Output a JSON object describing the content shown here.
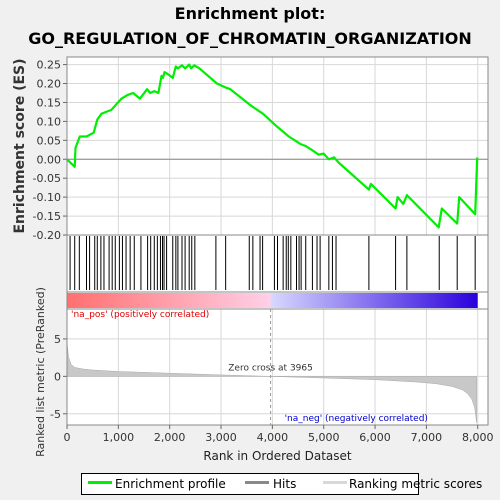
{
  "title_line1": "Enrichment plot:",
  "title_line2": "GO_REGULATION_OF_CHROMATIN_ORGANIZATION",
  "chart_data": {
    "type": "line",
    "title": "Enrichment plot: GO_REGULATION_OF_CHROMATIN_ORGANIZATION",
    "top_panel": {
      "ylabel": "Enrichment score (ES)",
      "ylim": [
        -0.2,
        0.27
      ],
      "yticks": [
        "0.25",
        "0.20",
        "0.15",
        "0.10",
        "0.05",
        "0.00",
        "-0.05",
        "-0.10",
        "-0.15",
        "-0.20"
      ],
      "ytick_values": [
        0.25,
        0.2,
        0.15,
        0.1,
        0.05,
        0.0,
        -0.05,
        -0.1,
        -0.15,
        -0.2
      ],
      "series": [
        {
          "name": "Enrichment profile",
          "color": "#00ee00",
          "x": [
            0,
            150,
            165,
            250,
            380,
            520,
            590,
            670,
            760,
            860,
            960,
            1060,
            1180,
            1290,
            1420,
            1560,
            1620,
            1700,
            1780,
            1840,
            1870,
            1900,
            1960,
            2060,
            2120,
            2160,
            2240,
            2300,
            2380,
            2420,
            2480,
            2580,
            2920,
            3080,
            3180,
            3600,
            3820,
            4060,
            4320,
            4550,
            4650,
            4820,
            4900,
            5000,
            5100,
            5200,
            5300,
            5880,
            5920,
            6400,
            6440,
            6550,
            6620,
            7240,
            7300,
            7600,
            7640,
            7950,
            7990
          ],
          "y": [
            0.0,
            -0.02,
            0.03,
            0.06,
            0.06,
            0.07,
            0.105,
            0.12,
            0.125,
            0.13,
            0.145,
            0.16,
            0.17,
            0.175,
            0.16,
            0.185,
            0.175,
            0.18,
            0.175,
            0.22,
            0.215,
            0.23,
            0.225,
            0.215,
            0.245,
            0.24,
            0.248,
            0.24,
            0.25,
            0.24,
            0.248,
            0.24,
            0.2,
            0.19,
            0.185,
            0.14,
            0.12,
            0.09,
            0.06,
            0.04,
            0.035,
            0.02,
            0.012,
            0.015,
            0.0,
            0.005,
            -0.01,
            -0.08,
            -0.065,
            -0.13,
            -0.1,
            -0.118,
            -0.095,
            -0.18,
            -0.13,
            -0.17,
            -0.1,
            -0.145,
            0.005
          ]
        }
      ]
    },
    "hits_panel": {
      "series_name": "Hits",
      "positions": [
        60,
        150,
        240,
        380,
        440,
        540,
        590,
        660,
        720,
        820,
        880,
        940,
        1020,
        1080,
        1150,
        1230,
        1310,
        1440,
        1570,
        1630,
        1700,
        1760,
        1820,
        1860,
        1890,
        1940,
        2060,
        2120,
        2160,
        2240,
        2300,
        2380,
        2430,
        2490,
        2900,
        3090,
        3550,
        3620,
        3760,
        3810,
        4040,
        4100,
        4210,
        4270,
        4310,
        4360,
        4470,
        4520,
        4560,
        4650,
        4780,
        4870,
        4930,
        5100,
        5170,
        5240,
        5880,
        6400,
        6620,
        7250,
        7600,
        7950
      ]
    },
    "rank_bar_panel": {
      "segments": [
        {
          "from": 0,
          "to": 3965,
          "colors": [
            "#ff6f6f",
            "#ffd0e8"
          ]
        },
        {
          "from": 3965,
          "to": 8000,
          "colors": [
            "#d8d8ff",
            "#2a00dd"
          ]
        }
      ]
    },
    "metric_panel": {
      "ylabel": "Ranked list metric (PreRanked)",
      "xlabel": "Rank in Ordered Dataset",
      "ylim": [
        -6.5,
        9
      ],
      "yticks": [
        "5",
        "0",
        "-5"
      ],
      "ytick_values": [
        5,
        0,
        -5
      ],
      "xticks": [
        "0",
        "1,000",
        "2,000",
        "3,000",
        "4,000",
        "5,000",
        "6,000",
        "7,000",
        "8,000"
      ],
      "xtick_values": [
        0,
        1000,
        2000,
        3000,
        4000,
        5000,
        6000,
        7000,
        8000
      ],
      "xlim": [
        0,
        8200
      ],
      "series_name": "Ranking metric scores",
      "profile_x": [
        0,
        30,
        80,
        150,
        300,
        500,
        1000,
        2000,
        3000,
        3965,
        5000,
        6000,
        6800,
        7200,
        7500,
        7700,
        7800,
        7880,
        7940,
        7980
      ],
      "profile_y": [
        4.6,
        2.6,
        1.6,
        1.2,
        1.0,
        0.85,
        0.65,
        0.42,
        0.2,
        0.0,
        -0.22,
        -0.45,
        -0.75,
        -1.0,
        -1.35,
        -1.8,
        -2.3,
        -3.0,
        -4.2,
        -6.2
      ],
      "annotations": {
        "zero_cross": "Zero cross at 3965",
        "zero_cross_x": 3965,
        "pos_label": "'na_pos' (positively correlated)",
        "neg_label": "'na_neg' (negatively correlated)"
      }
    },
    "legend": [
      "Enrichment profile",
      "Hits",
      "Ranking metric scores"
    ],
    "colors": {
      "profile": "#00ee00",
      "hits": "#000000",
      "metric_fill": "#c8c8c8",
      "pos_text": "#dd0000",
      "neg_text": "#0000cc"
    }
  }
}
